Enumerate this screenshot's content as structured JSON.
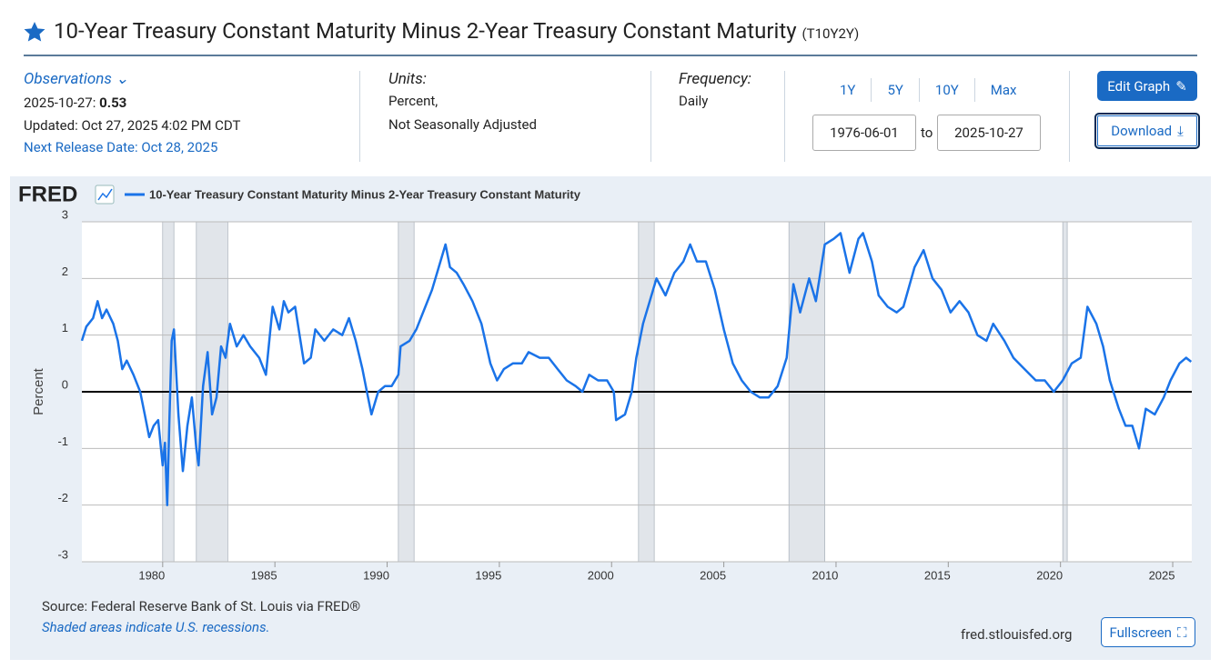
{
  "header": {
    "title": "10-Year Treasury Constant Maturity Minus 2-Year Treasury Constant Maturity",
    "series_id": "(T10Y2Y)"
  },
  "observations": {
    "label": "Observations",
    "date": "2025-10-27:",
    "value": 0.53,
    "updated": "Updated: Oct 27, 2025 4:02 PM CDT",
    "next_release": "Next Release Date: Oct 28, 2025"
  },
  "units": {
    "label": "Units:",
    "lines": [
      "Percent,",
      "Not Seasonally Adjusted"
    ]
  },
  "frequency": {
    "label": "Frequency:",
    "value": "Daily"
  },
  "range_buttons": [
    "1Y",
    "5Y",
    "10Y",
    "Max"
  ],
  "date_range": {
    "start": "1976-06-01",
    "to": "to",
    "end": "2025-10-27"
  },
  "buttons": {
    "edit": "Edit Graph",
    "download": "Download",
    "fullscreen": "Fullscreen"
  },
  "chart_data": {
    "type": "line",
    "logo": "FRED",
    "ylabel": "Percent",
    "x": [
      1976.4,
      1976.6,
      1976.9,
      1977.1,
      1977.3,
      1977.5,
      1977.8,
      1978.0,
      1978.2,
      1978.4,
      1978.7,
      1979.0,
      1979.2,
      1979.4,
      1979.6,
      1979.8,
      1979.9,
      1980.0,
      1980.1,
      1980.2,
      1980.3,
      1980.4,
      1980.5,
      1980.7,
      1980.9,
      1981.1,
      1981.3,
      1981.5,
      1981.6,
      1981.8,
      1982.0,
      1982.2,
      1982.4,
      1982.6,
      1982.8,
      1983.0,
      1983.3,
      1983.6,
      1983.9,
      1984.3,
      1984.6,
      1984.9,
      1985.2,
      1985.4,
      1985.6,
      1985.9,
      1986.1,
      1986.3,
      1986.6,
      1986.8,
      1987.2,
      1987.6,
      1988.0,
      1988.3,
      1988.6,
      1988.9,
      1989.1,
      1989.3,
      1989.6,
      1989.9,
      1990.2,
      1990.5,
      1990.6,
      1991.0,
      1991.3,
      1991.7,
      1992.0,
      1992.3,
      1992.6,
      1992.8,
      1993.1,
      1993.4,
      1993.8,
      1994.2,
      1994.6,
      1994.9,
      1995.2,
      1995.6,
      1996.0,
      1996.3,
      1996.8,
      1997.2,
      1997.6,
      1998.0,
      1998.4,
      1998.7,
      1999.0,
      1999.4,
      1999.8,
      2000.1,
      2000.2,
      2000.6,
      2000.9,
      2001.1,
      2001.4,
      2001.7,
      2002.0,
      2002.4,
      2002.8,
      2003.2,
      2003.5,
      2003.8,
      2004.2,
      2004.6,
      2005.0,
      2005.4,
      2005.8,
      2006.2,
      2006.6,
      2007.0,
      2007.4,
      2007.8,
      2008.1,
      2008.4,
      2008.8,
      2009.1,
      2009.5,
      2009.9,
      2010.2,
      2010.6,
      2011.0,
      2011.2,
      2011.6,
      2011.9,
      2012.3,
      2012.7,
      2013.0,
      2013.5,
      2013.9,
      2014.3,
      2014.7,
      2015.1,
      2015.5,
      2015.9,
      2016.3,
      2016.7,
      2017.0,
      2017.5,
      2017.9,
      2018.4,
      2018.9,
      2019.3,
      2019.7,
      2020.1,
      2020.5,
      2020.9,
      2021.2,
      2021.6,
      2021.9,
      2022.2,
      2022.6,
      2022.9,
      2023.2,
      2023.5,
      2023.8,
      2024.2,
      2024.6,
      2024.9,
      2025.3,
      2025.6,
      2025.82
    ],
    "series": [
      {
        "name": "10-Year Treasury Constant Maturity Minus 2-Year Treasury Constant Maturity",
        "color": "#1a73e8",
        "values": [
          0.9,
          1.15,
          1.3,
          1.6,
          1.3,
          1.45,
          1.2,
          0.9,
          0.4,
          0.55,
          0.3,
          0.0,
          -0.4,
          -0.8,
          -0.6,
          -0.5,
          -0.9,
          -1.3,
          -0.9,
          -2.0,
          -0.5,
          0.9,
          1.1,
          -0.4,
          -1.4,
          -0.6,
          -0.1,
          -1.0,
          -1.3,
          0.1,
          0.7,
          -0.4,
          -0.1,
          0.8,
          0.6,
          1.2,
          0.8,
          1.0,
          0.8,
          0.6,
          0.3,
          1.5,
          1.1,
          1.6,
          1.4,
          1.5,
          1.0,
          0.5,
          0.6,
          1.1,
          0.9,
          1.1,
          1.0,
          1.3,
          0.9,
          0.4,
          0.0,
          -0.4,
          0.0,
          0.1,
          0.1,
          0.3,
          0.8,
          0.9,
          1.1,
          1.5,
          1.8,
          2.2,
          2.6,
          2.2,
          2.1,
          1.9,
          1.6,
          1.2,
          0.5,
          0.2,
          0.4,
          0.5,
          0.5,
          0.7,
          0.6,
          0.6,
          0.4,
          0.2,
          0.1,
          0.0,
          0.3,
          0.2,
          0.2,
          0.0,
          -0.5,
          -0.4,
          0.0,
          0.6,
          1.2,
          1.6,
          2.0,
          1.7,
          2.1,
          2.3,
          2.6,
          2.3,
          2.3,
          1.8,
          1.1,
          0.5,
          0.2,
          0.0,
          -0.1,
          -0.1,
          0.1,
          0.6,
          1.9,
          1.4,
          2.0,
          1.6,
          2.6,
          2.7,
          2.8,
          2.1,
          2.7,
          2.8,
          2.3,
          1.7,
          1.5,
          1.4,
          1.5,
          2.2,
          2.5,
          2.0,
          1.8,
          1.4,
          1.6,
          1.4,
          1.0,
          0.9,
          1.2,
          0.9,
          0.6,
          0.4,
          0.2,
          0.2,
          0.0,
          0.2,
          0.5,
          0.6,
          1.5,
          1.2,
          0.8,
          0.2,
          -0.3,
          -0.6,
          -0.6,
          -1.0,
          -0.3,
          -0.4,
          -0.1,
          0.2,
          0.5,
          0.6,
          0.53
        ]
      }
    ],
    "recessions": [
      [
        1980.0,
        1980.5
      ],
      [
        1981.5,
        1982.9
      ],
      [
        1990.5,
        1991.2
      ],
      [
        2001.2,
        2001.9
      ],
      [
        2007.9,
        2009.5
      ],
      [
        2020.1,
        2020.3
      ]
    ],
    "recession_color": "#e1e5ea",
    "xlim": [
      1976.4,
      2025.85
    ],
    "xticks": [
      1980,
      1985,
      1990,
      1995,
      2000,
      2005,
      2010,
      2015,
      2020,
      2025
    ],
    "ylim": [
      -3,
      3
    ],
    "yticks": [
      -3,
      -2,
      -1,
      0,
      1,
      2,
      3
    ],
    "grid": true
  },
  "footer": {
    "source": "Source: Federal Reserve Bank of St. Louis via FRED®",
    "note": "Shaded areas indicate U.S. recessions.",
    "url": "fred.stlouisfed.org"
  }
}
